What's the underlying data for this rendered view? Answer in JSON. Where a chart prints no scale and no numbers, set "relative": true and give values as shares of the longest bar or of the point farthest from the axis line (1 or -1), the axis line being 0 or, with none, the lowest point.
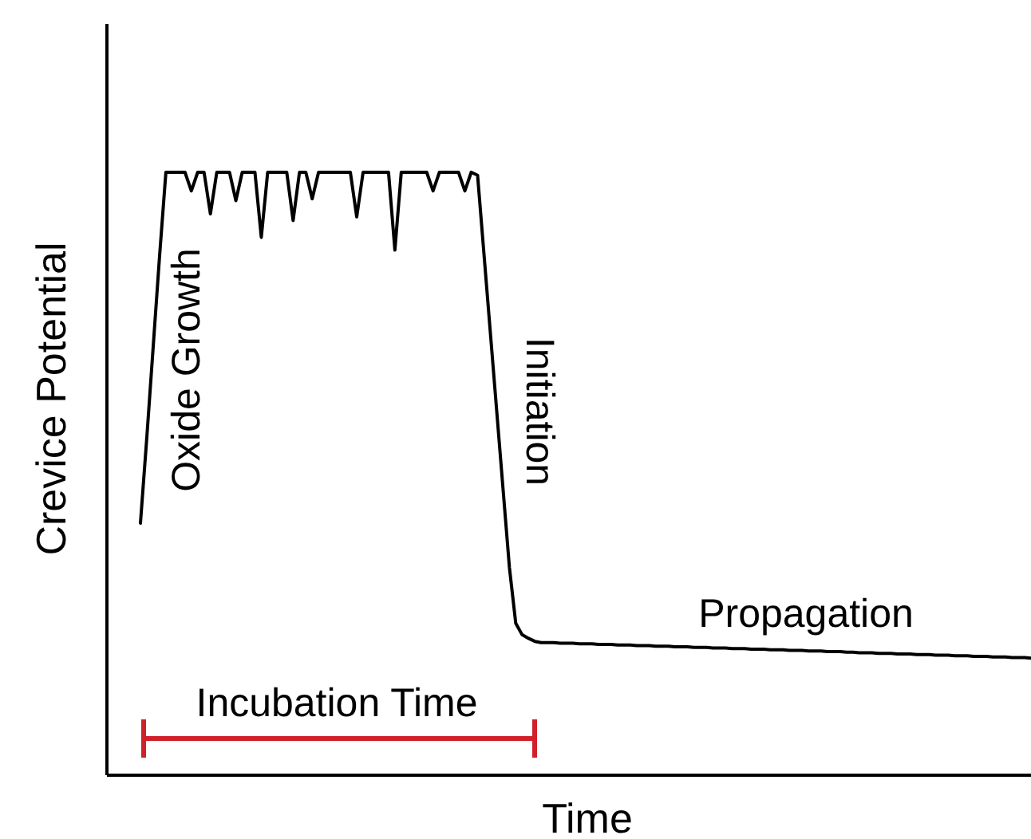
{
  "chart_data": {
    "type": "line",
    "relative": true,
    "xlabel": "Time",
    "ylabel": "Crevice Potential",
    "annotations": [
      "Oxide Growth",
      "Initiation",
      "Propagation",
      "Incubation Time"
    ],
    "categories": [
      null,
      null,
      null,
      null,
      null,
      null,
      null,
      null,
      null,
      null,
      null,
      null,
      null,
      null,
      null,
      null,
      null,
      null,
      null,
      null,
      null,
      null,
      null,
      null,
      null,
      null,
      null,
      null,
      null,
      null,
      null,
      null,
      null,
      null,
      null,
      null,
      null,
      null,
      null,
      null,
      null,
      null,
      null,
      null,
      null,
      null,
      null,
      null,
      null,
      null,
      null,
      null,
      null,
      null,
      null,
      null,
      null,
      null,
      null,
      null,
      null,
      null,
      null,
      null,
      null,
      null,
      null,
      null,
      null,
      null,
      null,
      null,
      null,
      null,
      null,
      null,
      null,
      null,
      null,
      null,
      null,
      null,
      null,
      null,
      null,
      null,
      null,
      null,
      null,
      null,
      null,
      null,
      null,
      null,
      null,
      null,
      null,
      null,
      null,
      null,
      null,
      null,
      null,
      null,
      null,
      null,
      null,
      null,
      null,
      null,
      null,
      null,
      null,
      null,
      null,
      null,
      null,
      null,
      null,
      null,
      null,
      null,
      null,
      null,
      null,
      null,
      null,
      null,
      null,
      null,
      null,
      null,
      null,
      null,
      null,
      null,
      null,
      null,
      null,
      null,
      null
    ],
    "series": [
      {
        "color": "#000000",
        "values": [
          0.418,
          0.56,
          0.71,
          0.86,
          1,
          1,
          1,
          1,
          0.969,
          1,
          1,
          0.931,
          1,
          1,
          1,
          0.953,
          1,
          1,
          1,
          0.892,
          1,
          1,
          1,
          1,
          0.92,
          1,
          1,
          0.956,
          1,
          1,
          1,
          1,
          1,
          1,
          0.926,
          1,
          1,
          1,
          1,
          1,
          0.871,
          1,
          1,
          1,
          1,
          1,
          0.969,
          1,
          1,
          1,
          1,
          0.969,
          1,
          0.995,
          0.865,
          0.735,
          0.605,
          0.475,
          0.345,
          0.252,
          0.233,
          0.227,
          0.222,
          0.22,
          0.22,
          0.22,
          0.219,
          0.219,
          0.219,
          0.218,
          0.218,
          0.218,
          0.217,
          0.217,
          0.217,
          0.216,
          0.216,
          0.216,
          0.215,
          0.215,
          0.215,
          0.214,
          0.214,
          0.214,
          0.213,
          0.213,
          0.213,
          0.212,
          0.212,
          0.212,
          0.211,
          0.211,
          0.211,
          0.21,
          0.21,
          0.21,
          0.209,
          0.209,
          0.209,
          0.208,
          0.208,
          0.208,
          0.207,
          0.207,
          0.207,
          0.206,
          0.206,
          0.206,
          0.205,
          0.205,
          0.205,
          0.204,
          0.204,
          0.203,
          0.203,
          0.203,
          0.202,
          0.202,
          0.202,
          0.201,
          0.201,
          0.201,
          0.2,
          0.2,
          0.2,
          0.199,
          0.199,
          0.199,
          0.198,
          0.198,
          0.198,
          0.197,
          0.197,
          0.197,
          0.196,
          0.196,
          0.196,
          0.195,
          0.195,
          0.195,
          0.194
        ]
      }
    ]
  }
}
